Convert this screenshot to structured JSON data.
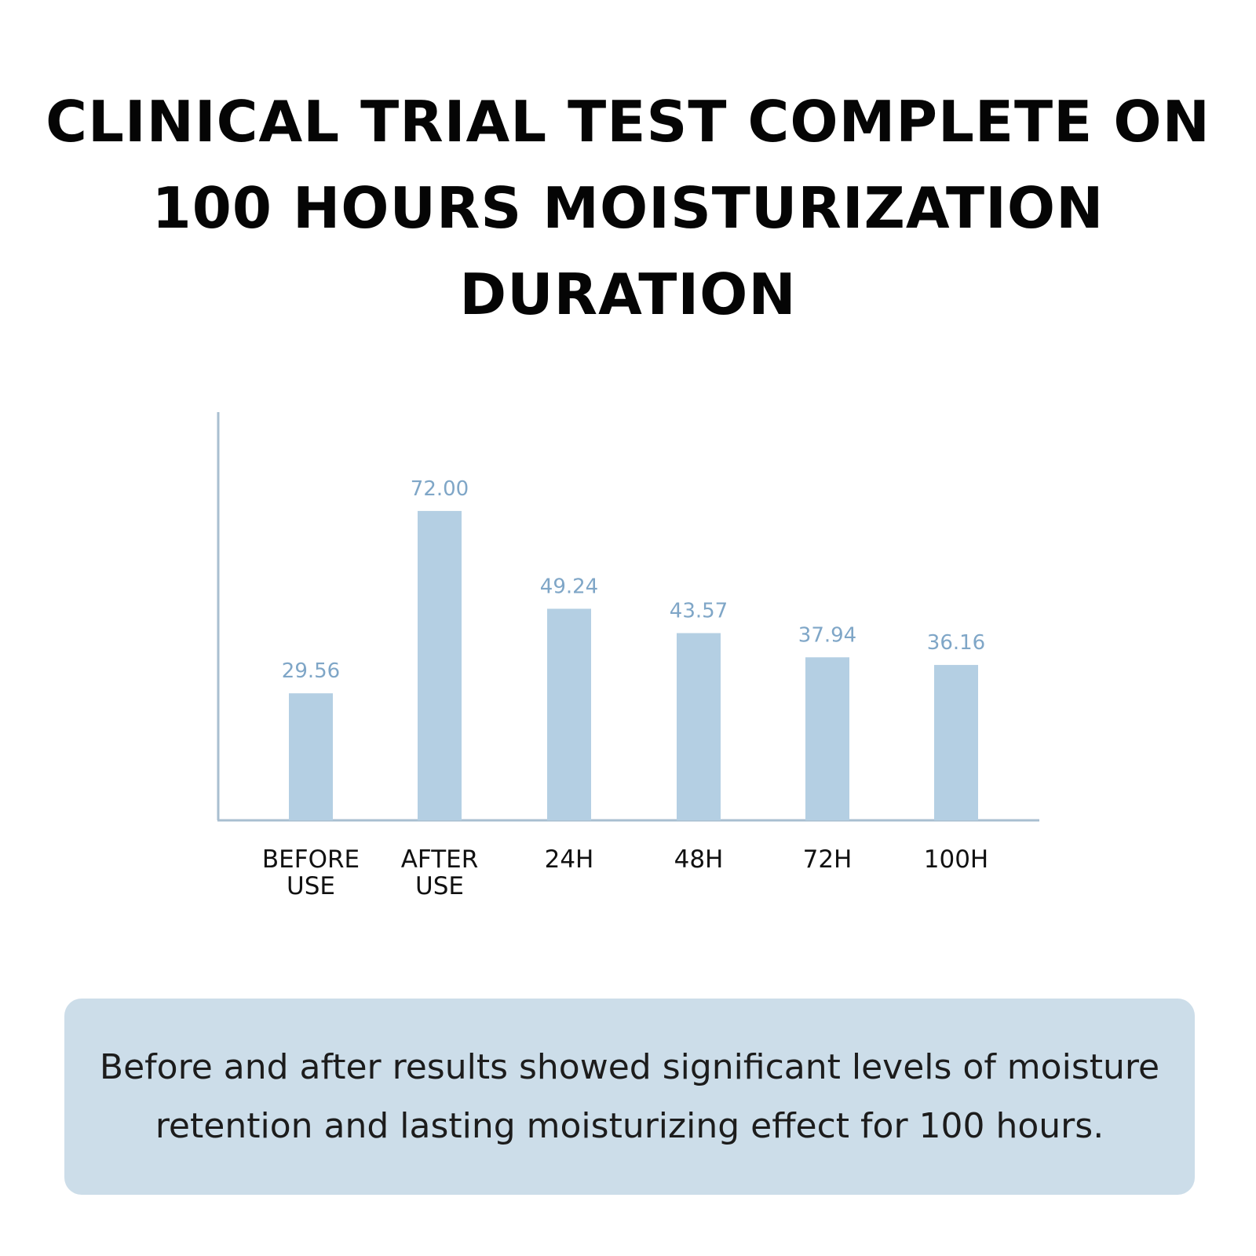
{
  "headline": "CLINICAL TRIAL TEST COMPLETE ON 100 HOURS MOISTURIZATION DURATION",
  "colors": {
    "bar": "#b4cfe3",
    "value_label": "#7fa6c7",
    "axis": "#a9bfd0",
    "caption_bg": "#ccdde9"
  },
  "chart_data": {
    "type": "bar",
    "title": "",
    "xlabel": "",
    "ylabel": "",
    "categories": [
      [
        "BEFORE",
        "USE"
      ],
      [
        "AFTER",
        "USE"
      ],
      [
        "24H"
      ],
      [
        "48H"
      ],
      [
        "72H"
      ],
      [
        "100H"
      ]
    ],
    "values": [
      29.56,
      72.0,
      49.24,
      43.57,
      37.94,
      36.16
    ],
    "value_labels": [
      "29.56",
      "72.00",
      "49.24",
      "43.57",
      "37.94",
      "36.16"
    ],
    "ylim": [
      0,
      95
    ],
    "grid": false,
    "legend": "none"
  },
  "caption": "Before and after results showed significant levels of moisture retention and lasting moisturizing effect for 100 hours."
}
